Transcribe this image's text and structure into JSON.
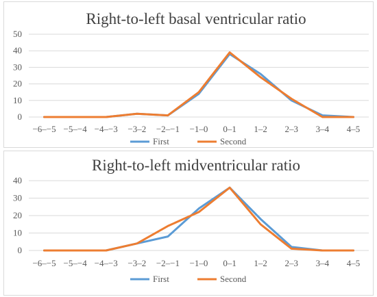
{
  "chart_data": [
    {
      "type": "line",
      "title": "Right-to-left basal ventricular ratio",
      "categories": [
        "−6–−5",
        "−5–−4",
        "−4–−3",
        "−3–2",
        "−2–−1",
        "−1–0",
        "0–1",
        "1–2",
        "2–3",
        "3–4",
        "4–5"
      ],
      "series": [
        {
          "name": "First",
          "values": [
            0,
            0,
            0,
            2,
            1,
            14,
            38,
            26,
            10,
            1,
            0
          ],
          "color": "#5b9bd5"
        },
        {
          "name": "Second",
          "values": [
            0,
            0,
            0,
            2,
            1,
            15,
            39,
            24,
            11,
            0,
            0
          ],
          "color": "#ed7d31"
        }
      ],
      "yticks": [
        0,
        10,
        20,
        30,
        40,
        50
      ],
      "ylim": [
        0,
        50
      ],
      "grid": true,
      "legend": "bottom"
    },
    {
      "type": "line",
      "title": "Right-to-left midventricular ratio",
      "categories": [
        "−6–−5",
        "−5–−4",
        "−4–−3",
        "−3–2",
        "−2–−1",
        "−1–0",
        "0–1",
        "1–2",
        "2–3",
        "3–4",
        "4–5"
      ],
      "series": [
        {
          "name": "First",
          "values": [
            0,
            0,
            0,
            4,
            8,
            24,
            36,
            18,
            2,
            0,
            0
          ],
          "color": "#5b9bd5"
        },
        {
          "name": "Second",
          "values": [
            0,
            0,
            0,
            4,
            14,
            22,
            36,
            15,
            1,
            0,
            0
          ],
          "color": "#ed7d31"
        }
      ],
      "yticks": [
        0,
        10,
        20,
        30,
        40
      ],
      "ylim": [
        0,
        40
      ],
      "grid": true,
      "legend": "bottom"
    }
  ]
}
